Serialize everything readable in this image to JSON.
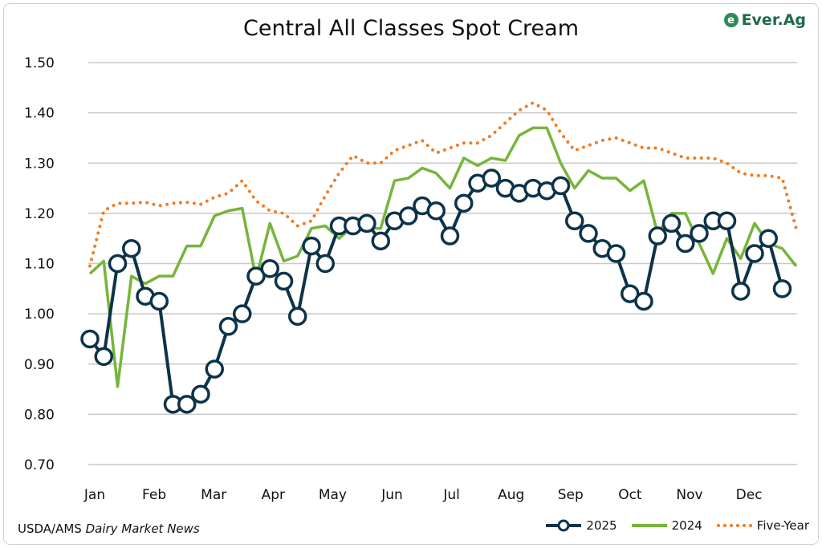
{
  "chart_data": {
    "type": "line",
    "title": "Central All Classes Spot Cream",
    "xlabel": "",
    "ylabel": "",
    "ylim": [
      0.7,
      1.5
    ],
    "yticks": [
      "0.70",
      "0.80",
      "0.90",
      "1.00",
      "1.10",
      "1.20",
      "1.30",
      "1.40",
      "1.50"
    ],
    "xticks": [
      "Jan",
      "Feb",
      "Mar",
      "Apr",
      "May",
      "Jun",
      "Jul",
      "Aug",
      "Sep",
      "Oct",
      "Nov",
      "Dec"
    ],
    "grid": true,
    "legend_position": "bottom-right",
    "series": [
      {
        "name": "2025",
        "color": "#0d3349",
        "style": "line-markers",
        "values": [
          0.95,
          0.915,
          1.1,
          1.13,
          1.035,
          1.025,
          0.82,
          0.82,
          0.84,
          0.89,
          0.975,
          1.0,
          1.075,
          1.09,
          1.065,
          0.995,
          1.135,
          1.1,
          1.175,
          1.175,
          1.18,
          1.145,
          1.185,
          1.195,
          1.215,
          1.205,
          1.155,
          1.22,
          1.26,
          1.27,
          1.25,
          1.24,
          1.25,
          1.245,
          1.255,
          1.185,
          1.16,
          1.13,
          1.12,
          1.04,
          1.025,
          1.155,
          1.18,
          1.14,
          1.16,
          1.185,
          1.185,
          1.045,
          1.12,
          1.15,
          1.05
        ]
      },
      {
        "name": "2024",
        "color": "#76b53a",
        "style": "solid",
        "values": [
          1.08,
          1.105,
          0.855,
          1.075,
          1.06,
          1.075,
          1.075,
          1.135,
          1.135,
          1.195,
          1.205,
          1.21,
          1.07,
          1.18,
          1.105,
          1.115,
          1.17,
          1.175,
          1.15,
          1.175,
          1.17,
          1.17,
          1.265,
          1.27,
          1.29,
          1.28,
          1.25,
          1.31,
          1.295,
          1.31,
          1.305,
          1.355,
          1.37,
          1.37,
          1.3,
          1.25,
          1.285,
          1.27,
          1.27,
          1.245,
          1.265,
          1.16,
          1.2,
          1.2,
          1.14,
          1.08,
          1.15,
          1.11,
          1.18,
          1.14,
          1.13,
          1.095
        ]
      },
      {
        "name": "Five-Year",
        "color": "#f07b22",
        "style": "dotted",
        "values": [
          1.095,
          1.205,
          1.22,
          1.22,
          1.222,
          1.215,
          1.22,
          1.222,
          1.218,
          1.232,
          1.24,
          1.265,
          1.225,
          1.205,
          1.2,
          1.175,
          1.185,
          1.235,
          1.28,
          1.315,
          1.3,
          1.3,
          1.325,
          1.335,
          1.345,
          1.32,
          1.33,
          1.34,
          1.34,
          1.355,
          1.38,
          1.405,
          1.42,
          1.405,
          1.36,
          1.325,
          1.335,
          1.345,
          1.35,
          1.34,
          1.33,
          1.33,
          1.32,
          1.31,
          1.31,
          1.31,
          1.3,
          1.28,
          1.275,
          1.275,
          1.27,
          1.17
        ]
      }
    ]
  },
  "source": {
    "prefix": "USDA/AMS",
    "italic": "Dairy Market News"
  },
  "logo": {
    "text": "Ever.Ag"
  }
}
